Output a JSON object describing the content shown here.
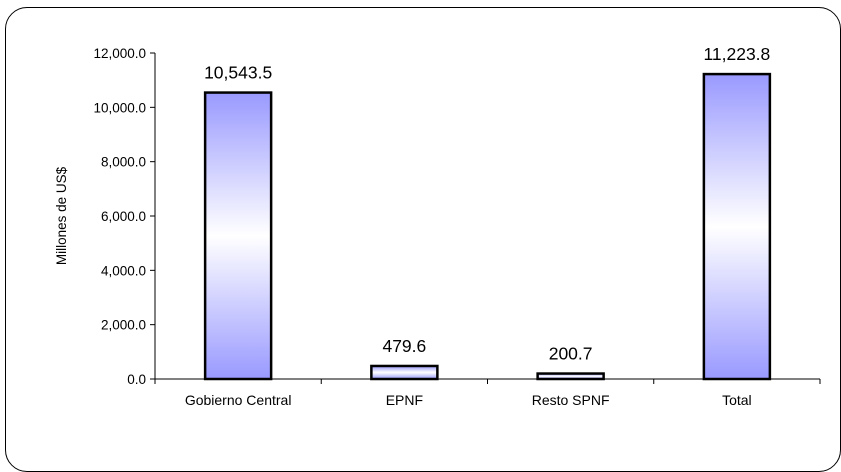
{
  "chart_data": {
    "type": "bar",
    "categories": [
      "Gobierno Central",
      "EPNF",
      "Resto SPNF",
      "Total"
    ],
    "values": [
      10543.5,
      479.6,
      200.7,
      11223.8
    ],
    "value_labels": [
      "10,543.5",
      "479.6",
      "200.7",
      "11,223.8"
    ],
    "ylabel": "Millones de US$",
    "ylim": [
      0,
      12000
    ],
    "yticks": [
      0,
      2000,
      4000,
      6000,
      8000,
      10000,
      12000
    ],
    "ytick_labels": [
      "0.0",
      "2,000.0",
      "4,000.0",
      "6,000.0",
      "8,000.0",
      "10,000.0",
      "12,000.0"
    ],
    "grid": false,
    "legend": "none",
    "bar_color": "#9999ff",
    "bar_highlight_color": "#ffffff",
    "bar_outline_color": "#000000"
  }
}
